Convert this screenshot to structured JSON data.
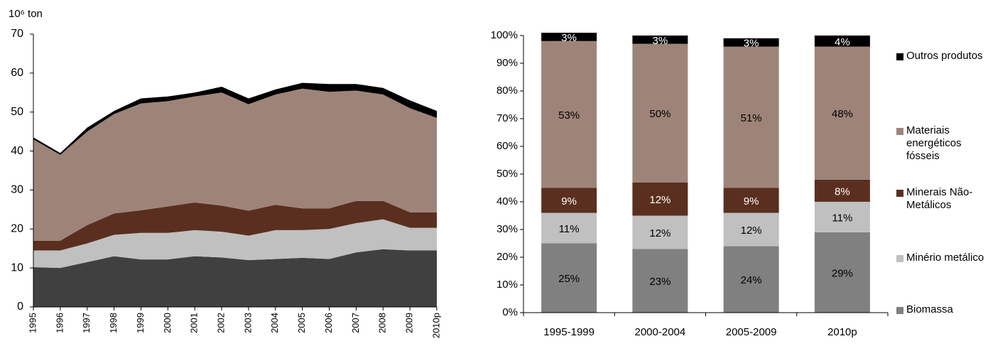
{
  "chart_data": [
    {
      "type": "area",
      "ylabel": "10⁶ ton",
      "categories": [
        "1995",
        "1996",
        "1997",
        "1998",
        "1999",
        "2000",
        "2001",
        "2002",
        "2003",
        "2004",
        "2005",
        "2006",
        "2007",
        "2008",
        "2009",
        "2010p"
      ],
      "ylim": [
        0,
        70
      ],
      "yticks": [
        0,
        10,
        20,
        30,
        40,
        50,
        60,
        70
      ],
      "series": [
        {
          "color": "#404040",
          "values": [
            10.2,
            10,
            11.5,
            13,
            12.2,
            12.2,
            13,
            12.7,
            12,
            12.3,
            12.6,
            12.3,
            14,
            14.8,
            14.5,
            14.5
          ]
        },
        {
          "color": "#c0c0c0",
          "values": [
            4.3,
            4.5,
            4.8,
            5.5,
            6.8,
            6.8,
            6.7,
            6.6,
            6.3,
            7.4,
            7.1,
            7.7,
            7.5,
            7.7,
            5.8,
            5.8
          ]
        },
        {
          "color": "#5a2f1f",
          "values": [
            2.5,
            2.5,
            4.7,
            5.5,
            5.8,
            6.8,
            7.1,
            6.7,
            6.4,
            6.5,
            5.6,
            5.3,
            5.7,
            4.7,
            4,
            4
          ]
        },
        {
          "color": "#9e8478",
          "values": [
            26,
            22,
            24,
            25.5,
            27.4,
            27,
            27.2,
            29,
            27.3,
            28.3,
            30.7,
            29.9,
            28.3,
            27.3,
            26.7,
            24.2
          ]
        },
        {
          "color": "#000000",
          "values": [
            0.5,
            0.5,
            1,
            0.8,
            1.3,
            1.2,
            1,
            1.5,
            1.5,
            1.3,
            1.5,
            2,
            1.7,
            1.7,
            2,
            1.8
          ]
        }
      ]
    },
    {
      "type": "stacked_bar",
      "categories": [
        "1995-1999",
        "2000-2004",
        "2005-2009",
        "2010p"
      ],
      "ylim": [
        0,
        100
      ],
      "yticks": [
        {
          "value": 0,
          "label": "0%"
        },
        {
          "value": 10,
          "label": "10%"
        },
        {
          "value": 20,
          "label": "20%"
        },
        {
          "value": 30,
          "label": "30%"
        },
        {
          "value": 40,
          "label": "40%"
        },
        {
          "value": 50,
          "label": "50%"
        },
        {
          "value": 60,
          "label": "60%"
        },
        {
          "value": 70,
          "label": "70%"
        },
        {
          "value": 80,
          "label": "80%"
        },
        {
          "value": 90,
          "label": "90%"
        },
        {
          "value": 100,
          "label": "100%"
        }
      ],
      "series": [
        {
          "name": "Biomassa",
          "color": "#808080",
          "values": [
            25,
            23,
            24,
            29
          ],
          "value_labels": [
            "25%",
            "23%",
            "24%",
            "29%"
          ]
        },
        {
          "name": "Minério metálico",
          "color": "#c0c0c0",
          "values": [
            11,
            12,
            12,
            11
          ],
          "value_labels": [
            "11%",
            "12%",
            "12%",
            "11%"
          ]
        },
        {
          "name": "Minerais Não-Metálicos",
          "color": "#5a2f1f",
          "values": [
            9,
            12,
            9,
            8
          ],
          "value_labels": [
            "9%",
            "12%",
            "9%",
            "8%"
          ]
        },
        {
          "name": "Materiais energéticos fósseis",
          "color": "#9e8478",
          "values": [
            53,
            50,
            51,
            48
          ],
          "value_labels": [
            "53%",
            "50%",
            "51%",
            "48%"
          ]
        },
        {
          "name": "Outros produtos",
          "color": "#000000",
          "values": [
            3,
            3,
            3,
            4
          ],
          "value_labels": [
            "3%",
            "3%",
            "3%",
            "4%"
          ]
        }
      ]
    }
  ]
}
